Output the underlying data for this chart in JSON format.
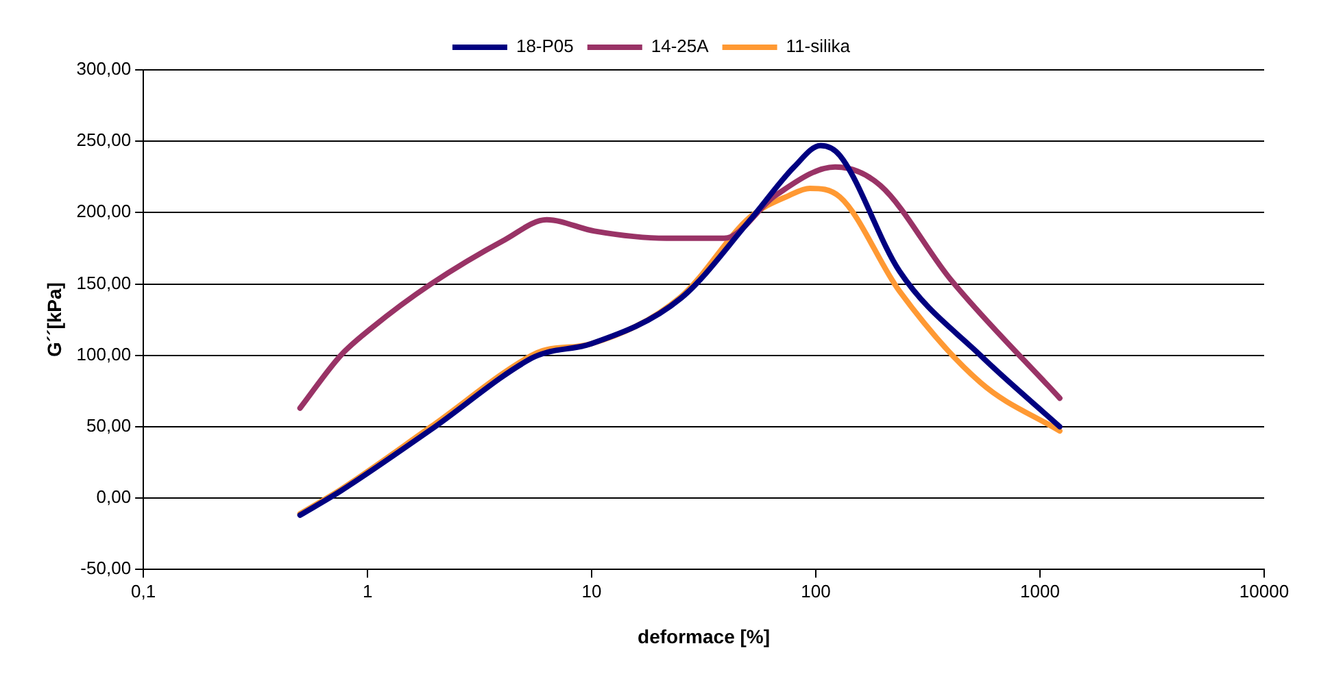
{
  "chart_data": {
    "type": "line",
    "xlabel": "deformace [%]",
    "ylabel": "G´´[kPa]",
    "xlim": [
      0.1,
      10000
    ],
    "xticks": [
      {
        "value": 0.1,
        "label": "0,1"
      },
      1,
      10,
      100,
      1000,
      10000
    ],
    "ylim": [
      -50,
      300
    ],
    "yticks": [
      {
        "value": -50,
        "label": "-50,00"
      },
      {
        "value": 0,
        "label": "0,00"
      },
      {
        "value": 50,
        "label": "50,00"
      },
      {
        "value": 100,
        "label": "100,00"
      },
      {
        "value": 150,
        "label": "150,00"
      },
      {
        "value": 200,
        "label": "200,00"
      },
      {
        "value": 250,
        "label": "250,00"
      },
      {
        "value": 300,
        "label": "300,00"
      }
    ],
    "log": "x",
    "grid": "y",
    "legend": "top",
    "marker": "none",
    "line_style": "solid",
    "series": [
      {
        "name": "18-P05",
        "color": "#000080",
        "x": [
          0.5,
          0.76,
          1.92,
          5.4,
          6.3,
          9.9,
          25,
          51,
          80,
          105,
          128,
          236,
          542,
          1225
        ],
        "values": [
          -12,
          5,
          48,
          98,
          102,
          108,
          140,
          195,
          232,
          247,
          240,
          159,
          100,
          50
        ]
      },
      {
        "name": "14-25A",
        "color": "#993366",
        "x": [
          0.5,
          0.76,
          1.04,
          1.92,
          4.1,
          6.3,
          10.3,
          21.5,
          39,
          66,
          122,
          194,
          400,
          1225
        ],
        "values": [
          63,
          100,
          119,
          150,
          181,
          195,
          187,
          182,
          182,
          212,
          232,
          219,
          153,
          70
        ]
      },
      {
        "name": "11-silika",
        "color": "#ff9933",
        "x": [
          0.5,
          0.76,
          1.92,
          5.4,
          6.3,
          9.9,
          25,
          51,
          76,
          94,
          128,
          236,
          542,
          1225
        ],
        "values": [
          -11,
          6,
          50,
          100,
          104,
          108,
          141,
          197,
          212,
          217,
          211,
          145,
          81,
          47
        ]
      }
    ]
  }
}
